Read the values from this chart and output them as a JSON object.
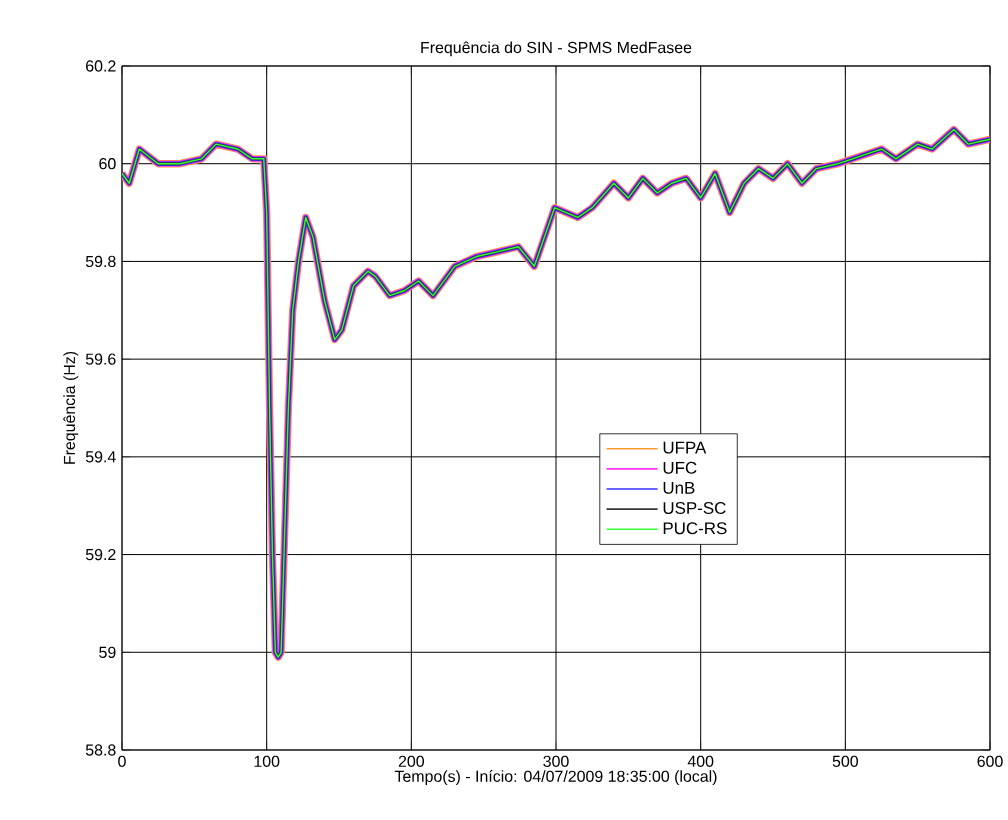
{
  "chart_data": {
    "type": "line",
    "title": "Frequência do SIN - SPMS MedFasee",
    "xlabel": "Tempo(s) - Início: 04/07/2009 18:35:00 (local)",
    "ylabel": "Frequência (Hz)",
    "x": [
      0,
      5,
      12,
      25,
      40,
      55,
      65,
      80,
      90,
      98,
      100,
      102,
      104,
      106,
      108,
      110,
      112,
      115,
      118,
      122,
      127,
      132,
      140,
      147,
      152,
      160,
      170,
      175,
      185,
      195,
      205,
      215,
      230,
      245,
      260,
      274,
      285,
      299,
      307,
      315,
      325,
      340,
      350,
      360,
      370,
      380,
      390,
      400,
      410,
      420,
      430,
      440,
      450,
      460,
      470,
      480,
      495,
      505,
      515,
      525,
      535,
      550,
      560,
      575,
      585,
      600
    ],
    "series": [
      {
        "name": "UFPA",
        "color": "#ff9933",
        "values": [
          59.98,
          59.96,
          60.03,
          60.0,
          60.0,
          60.01,
          60.04,
          60.03,
          60.01,
          60.01,
          59.9,
          59.5,
          59.2,
          59.0,
          58.99,
          59.0,
          59.2,
          59.5,
          59.7,
          59.8,
          59.89,
          59.85,
          59.72,
          59.64,
          59.66,
          59.75,
          59.78,
          59.77,
          59.73,
          59.74,
          59.76,
          59.73,
          59.79,
          59.81,
          59.82,
          59.83,
          59.79,
          59.91,
          59.9,
          59.89,
          59.91,
          59.96,
          59.93,
          59.97,
          59.94,
          59.96,
          59.97,
          59.93,
          59.98,
          59.9,
          59.96,
          59.99,
          59.97,
          60.0,
          59.96,
          59.99,
          60.0,
          60.01,
          60.02,
          60.03,
          60.01,
          60.04,
          60.03,
          60.07,
          60.04,
          60.05
        ]
      },
      {
        "name": "UFC",
        "color": "#ff33ff",
        "values": [
          59.98,
          59.96,
          60.03,
          60.0,
          60.0,
          60.01,
          60.04,
          60.03,
          60.01,
          60.01,
          59.9,
          59.5,
          59.2,
          59.0,
          58.99,
          59.0,
          59.2,
          59.5,
          59.7,
          59.8,
          59.89,
          59.85,
          59.72,
          59.64,
          59.66,
          59.75,
          59.78,
          59.77,
          59.73,
          59.74,
          59.76,
          59.73,
          59.79,
          59.81,
          59.82,
          59.83,
          59.79,
          59.91,
          59.9,
          59.89,
          59.91,
          59.96,
          59.93,
          59.97,
          59.94,
          59.96,
          59.97,
          59.93,
          59.98,
          59.9,
          59.96,
          59.99,
          59.97,
          60.0,
          59.96,
          59.99,
          60.0,
          60.01,
          60.02,
          60.03,
          60.01,
          60.04,
          60.03,
          60.07,
          60.04,
          60.05
        ]
      },
      {
        "name": "UnB",
        "color": "#3333ff",
        "values": [
          59.98,
          59.96,
          60.03,
          60.0,
          60.0,
          60.01,
          60.04,
          60.03,
          60.01,
          60.01,
          59.9,
          59.5,
          59.2,
          59.0,
          58.99,
          59.0,
          59.2,
          59.5,
          59.7,
          59.8,
          59.89,
          59.85,
          59.72,
          59.64,
          59.66,
          59.75,
          59.78,
          59.77,
          59.73,
          59.74,
          59.76,
          59.73,
          59.79,
          59.81,
          59.82,
          59.83,
          59.79,
          59.91,
          59.9,
          59.89,
          59.91,
          59.96,
          59.93,
          59.97,
          59.94,
          59.96,
          59.97,
          59.93,
          59.98,
          59.9,
          59.96,
          59.99,
          59.97,
          60.0,
          59.96,
          59.99,
          60.0,
          60.01,
          60.02,
          60.03,
          60.01,
          60.04,
          60.03,
          60.07,
          60.04,
          60.05
        ]
      },
      {
        "name": "USP-SC",
        "color": "#333333",
        "values": [
          59.98,
          59.96,
          60.03,
          60.0,
          60.0,
          60.01,
          60.04,
          60.03,
          60.01,
          60.01,
          59.9,
          59.5,
          59.2,
          59.0,
          58.99,
          59.0,
          59.2,
          59.5,
          59.7,
          59.8,
          59.89,
          59.85,
          59.72,
          59.64,
          59.66,
          59.75,
          59.78,
          59.77,
          59.73,
          59.74,
          59.76,
          59.73,
          59.79,
          59.81,
          59.82,
          59.83,
          59.79,
          59.91,
          59.9,
          59.89,
          59.91,
          59.96,
          59.93,
          59.97,
          59.94,
          59.96,
          59.97,
          59.93,
          59.98,
          59.9,
          59.96,
          59.99,
          59.97,
          60.0,
          59.96,
          59.99,
          60.0,
          60.01,
          60.02,
          60.03,
          60.01,
          60.04,
          60.03,
          60.07,
          60.04,
          60.05
        ]
      },
      {
        "name": "PUC-RS",
        "color": "#33ff33",
        "values": [
          59.98,
          59.96,
          60.03,
          60.0,
          60.0,
          60.01,
          60.04,
          60.03,
          60.01,
          60.01,
          59.9,
          59.5,
          59.2,
          59.0,
          58.99,
          59.0,
          59.2,
          59.5,
          59.7,
          59.8,
          59.89,
          59.85,
          59.72,
          59.64,
          59.66,
          59.75,
          59.78,
          59.77,
          59.73,
          59.74,
          59.76,
          59.73,
          59.79,
          59.81,
          59.82,
          59.83,
          59.79,
          59.91,
          59.9,
          59.89,
          59.91,
          59.96,
          59.93,
          59.97,
          59.94,
          59.96,
          59.97,
          59.93,
          59.98,
          59.9,
          59.96,
          59.99,
          59.97,
          60.0,
          59.96,
          59.99,
          60.0,
          60.01,
          60.02,
          60.03,
          60.01,
          60.04,
          60.03,
          60.07,
          60.04,
          60.05
        ]
      }
    ],
    "xlim": [
      0,
      600
    ],
    "ylim": [
      58.8,
      60.2
    ],
    "xticks": [
      0,
      100,
      200,
      300,
      400,
      500,
      600
    ],
    "yticks": [
      58.8,
      59,
      59.2,
      59.4,
      59.6,
      59.8,
      60,
      60.2
    ],
    "grid": true,
    "legend": "right",
    "marker": "none",
    "line_style": "solid"
  }
}
